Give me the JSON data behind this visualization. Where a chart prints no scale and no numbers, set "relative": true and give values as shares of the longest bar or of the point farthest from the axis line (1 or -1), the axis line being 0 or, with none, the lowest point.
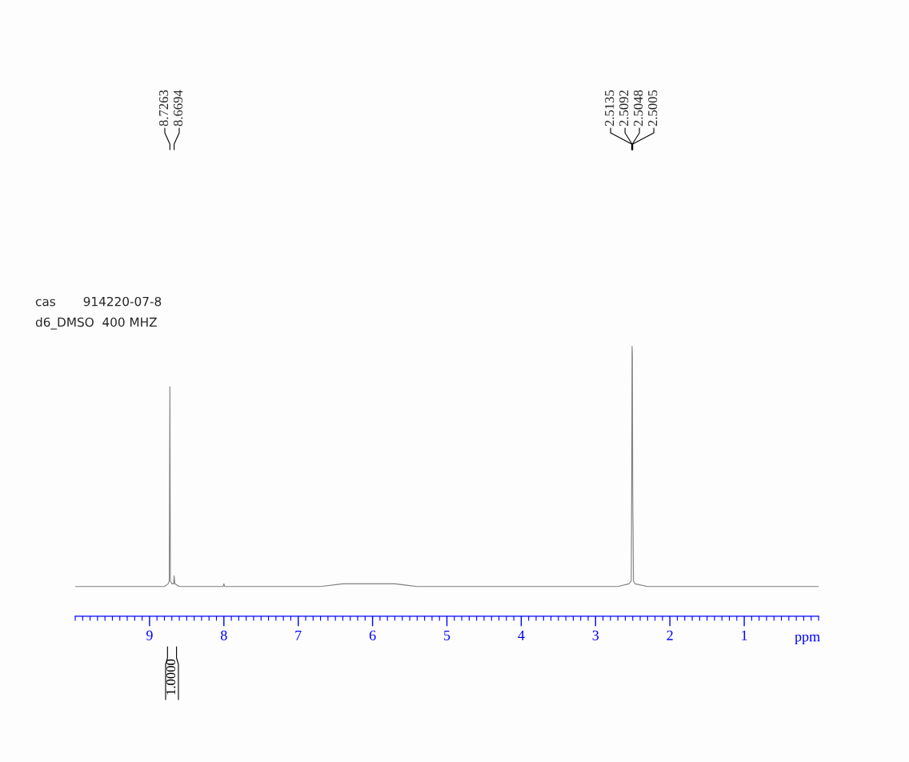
{
  "chart_data": {
    "type": "line",
    "relative": true,
    "xlabel": "ppm",
    "xlim": [
      10,
      0
    ],
    "xticks": [
      9,
      8,
      7,
      6,
      5,
      4,
      3,
      2,
      1
    ],
    "series": [
      {
        "color": "#808080",
        "x": [
          10.0,
          9.5,
          9.0,
          8.8,
          8.75,
          8.735,
          8.7263,
          8.72,
          8.7,
          8.675,
          8.6694,
          8.66,
          8.6,
          8.3,
          8.01,
          8.0,
          7.99,
          7.5,
          7.0,
          6.7,
          6.4,
          6.0,
          5.7,
          5.4,
          5.0,
          4.0,
          3.0,
          2.7,
          2.55,
          2.52,
          2.5135,
          2.5092,
          2.5048,
          2.5005,
          2.49,
          2.47,
          2.3,
          2.0,
          1.0,
          0.5,
          0.0
        ],
        "values": [
          0.11,
          0.11,
          0.11,
          0.11,
          0.12,
          0.13,
          0.85,
          0.13,
          0.12,
          0.12,
          0.15,
          0.12,
          0.11,
          0.11,
          0.11,
          0.12,
          0.11,
          0.11,
          0.11,
          0.11,
          0.12,
          0.12,
          0.12,
          0.11,
          0.11,
          0.11,
          0.11,
          0.11,
          0.12,
          0.13,
          0.55,
          1.0,
          0.97,
          0.46,
          0.13,
          0.12,
          0.11,
          0.11,
          0.11,
          0.11,
          0.11
        ]
      }
    ],
    "annotations": [
      "cas       914220-07-8",
      "d6_DMSO  400 MHZ",
      "8.7263",
      "8.6694",
      "2.5135",
      "2.5092",
      "2.5048",
      "2.5005",
      "1.0000"
    ]
  }
}
